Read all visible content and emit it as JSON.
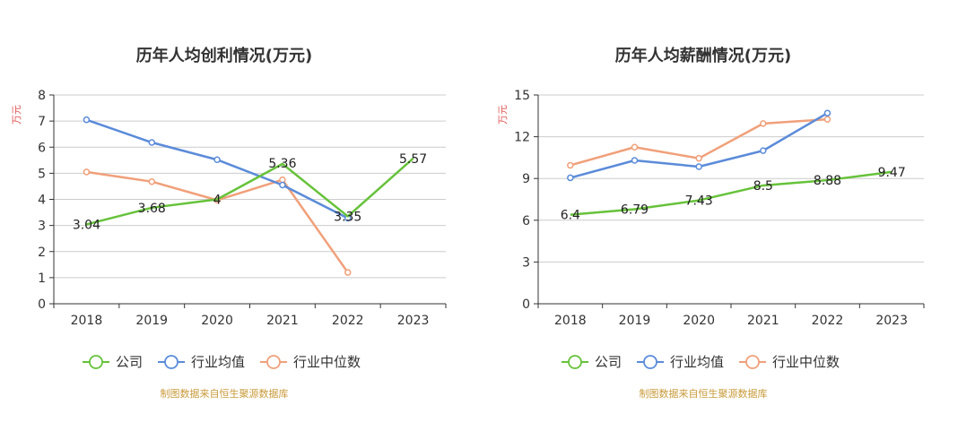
{
  "chart_data": [
    {
      "type": "line",
      "title": "历年人均创利情况(万元)",
      "ylabel": "万元",
      "categories": [
        "2018",
        "2019",
        "2020",
        "2021",
        "2022",
        "2023"
      ],
      "ylim": [
        0,
        8
      ],
      "yticks": [
        0,
        1,
        2,
        3,
        4,
        5,
        6,
        7,
        8
      ],
      "grid": true,
      "legend_position": "bottom-left",
      "series": [
        {
          "name": "公司",
          "color": "#66c23a",
          "values": [
            3.04,
            3.68,
            4,
            5.36,
            3.35,
            5.57
          ],
          "labels": [
            "3.04",
            "3.68",
            "4",
            "5.36",
            "3.35",
            "5.57"
          ],
          "show_labels": true
        },
        {
          "name": "行业均值",
          "color": "#5b8bd9",
          "values": [
            7.05,
            6.18,
            5.52,
            4.55,
            3.28,
            null
          ],
          "show_labels": false
        },
        {
          "name": "行业中位数",
          "color": "#f0a07a",
          "values": [
            5.05,
            4.68,
            3.97,
            4.75,
            1.2,
            null
          ],
          "show_labels": false
        }
      ],
      "source": "制图数据来自恒生聚源数据库"
    },
    {
      "type": "line",
      "title": "历年人均薪酬情况(万元)",
      "ylabel": "万元",
      "categories": [
        "2018",
        "2019",
        "2020",
        "2021",
        "2022",
        "2023"
      ],
      "ylim": [
        0,
        15
      ],
      "yticks": [
        0,
        3,
        6,
        9,
        12,
        15
      ],
      "grid": true,
      "legend_position": "bottom-left",
      "series": [
        {
          "name": "公司",
          "color": "#66c23a",
          "values": [
            6.4,
            6.79,
            7.43,
            8.5,
            8.88,
            9.47
          ],
          "labels": [
            "6.4",
            "6.79",
            "7.43",
            "8.5",
            "8.88",
            "9.47"
          ],
          "show_labels": true
        },
        {
          "name": "行业均值",
          "color": "#5b8bd9",
          "values": [
            9.05,
            10.3,
            9.85,
            11.0,
            13.7,
            null
          ],
          "show_labels": false
        },
        {
          "name": "行业中位数",
          "color": "#f0a07a",
          "values": [
            9.95,
            11.25,
            10.45,
            12.95,
            13.25,
            null
          ],
          "show_labels": false
        }
      ],
      "source": "制图数据来自恒生聚源数据库"
    }
  ]
}
